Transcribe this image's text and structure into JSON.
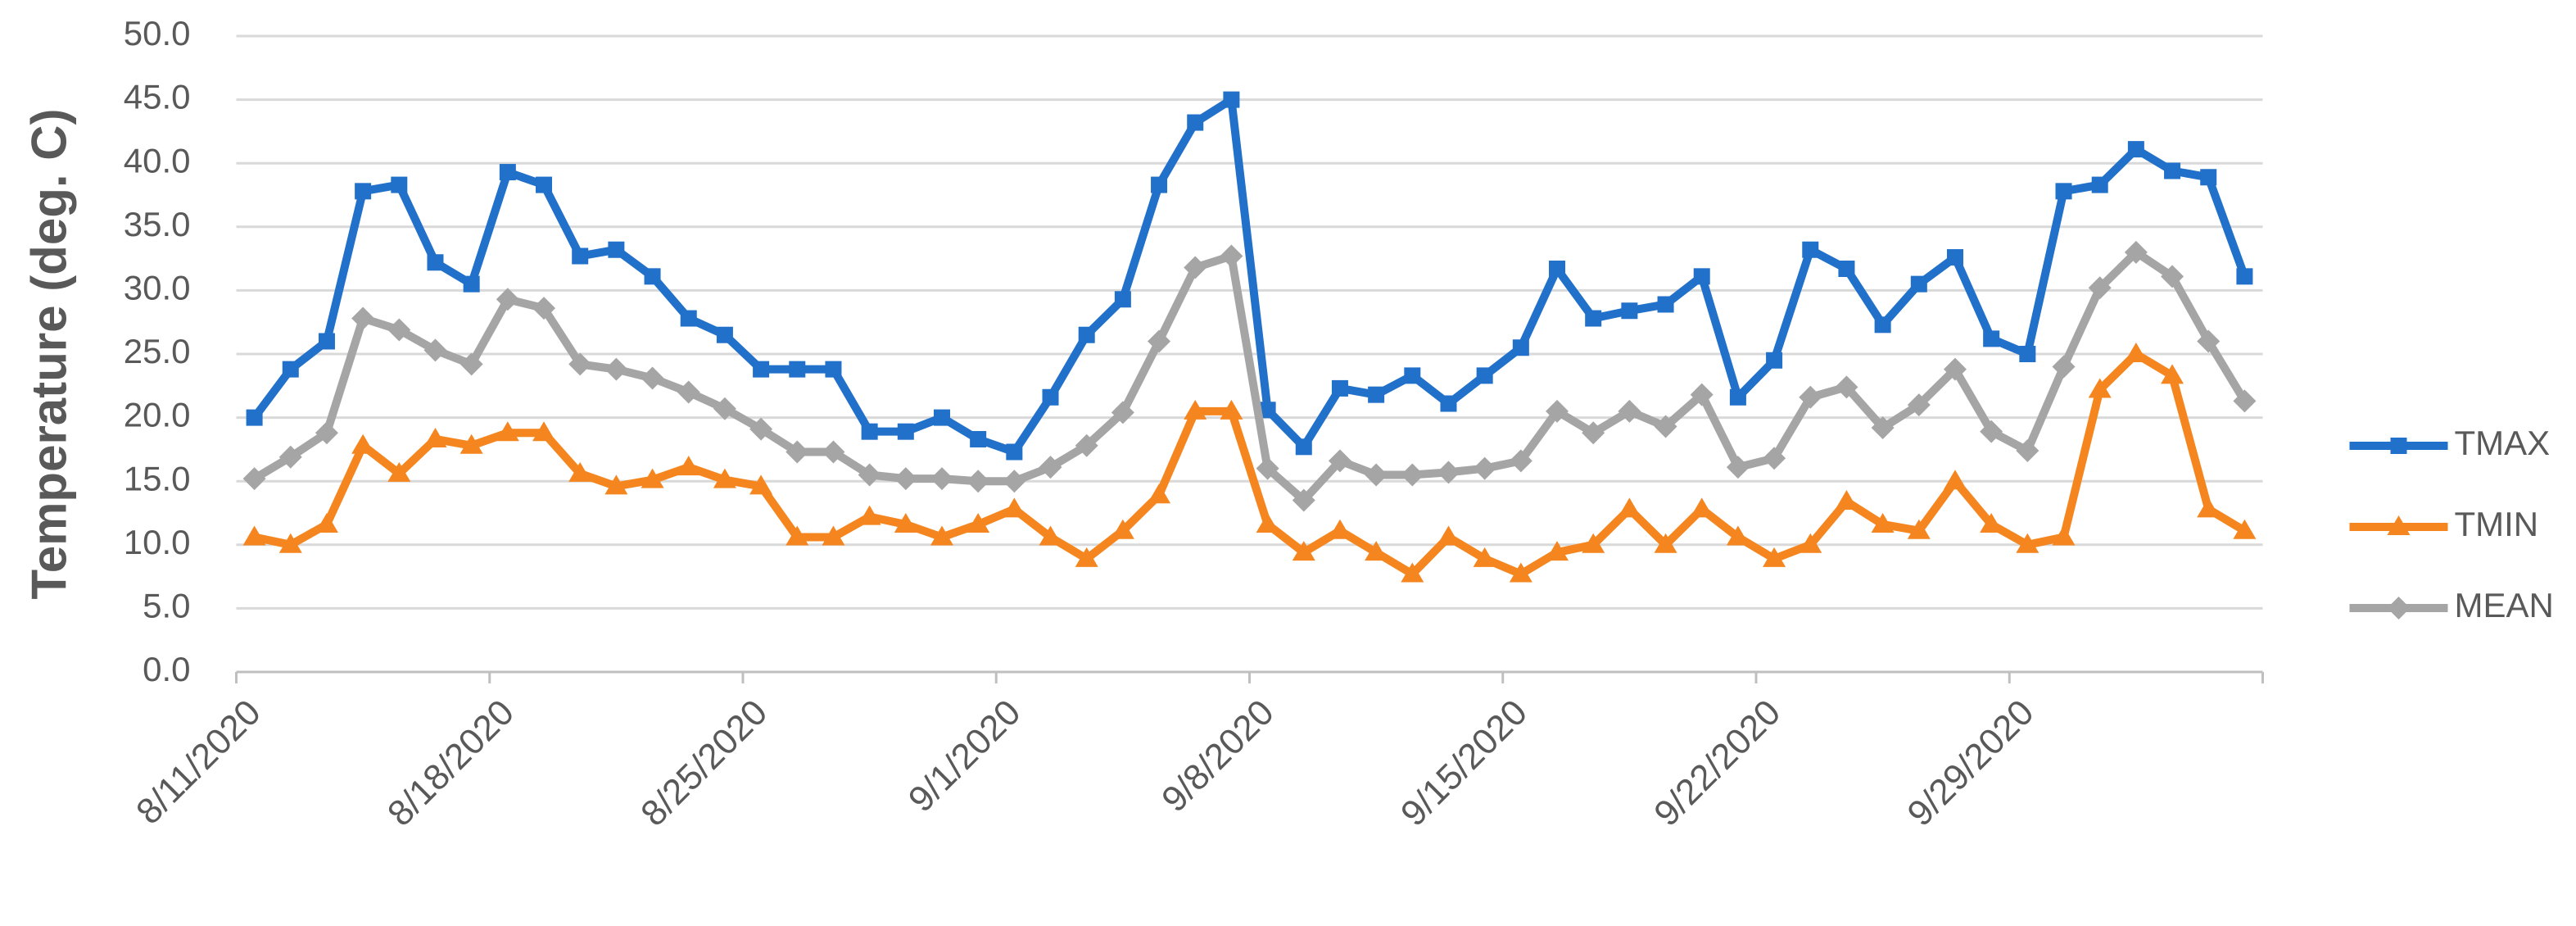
{
  "chart_data": {
    "type": "line",
    "y_label": "Temperature (deg. C)",
    "categories": [
      "8/11/2020",
      null,
      null,
      null,
      null,
      null,
      null,
      "8/18/2020",
      null,
      null,
      null,
      null,
      null,
      null,
      "8/25/2020",
      null,
      null,
      null,
      null,
      null,
      null,
      "9/1/2020",
      null,
      null,
      null,
      null,
      null,
      null,
      "9/8/2020",
      null,
      null,
      null,
      null,
      null,
      null,
      "9/15/2020",
      null,
      null,
      null,
      null,
      null,
      null,
      "9/22/2020",
      null,
      null,
      null,
      null,
      null,
      null,
      "9/29/2020",
      null,
      null,
      null,
      null,
      null,
      null
    ],
    "series": [
      {
        "name": "TMAX",
        "color": "#2170c9",
        "marker": "square",
        "values": [
          20.0,
          23.8,
          26.0,
          37.8,
          38.3,
          32.2,
          30.5,
          39.3,
          38.3,
          32.7,
          33.2,
          31.1,
          27.8,
          26.5,
          23.8,
          23.8,
          23.8,
          18.9,
          18.9,
          20.0,
          18.3,
          17.3,
          21.6,
          26.5,
          29.3,
          38.3,
          43.2,
          45.0,
          20.6,
          17.7,
          22.3,
          21.8,
          23.3,
          21.1,
          23.3,
          25.5,
          31.7,
          27.8,
          28.4,
          28.9,
          31.1,
          21.6,
          24.5,
          33.2,
          31.7,
          27.3,
          30.5,
          32.6,
          26.2,
          25.0,
          37.8,
          38.3,
          41.1,
          39.4,
          38.9,
          31.1
        ]
      },
      {
        "name": "TMIN",
        "color": "#f5861f",
        "marker": "triangle",
        "values": [
          10.6,
          10.0,
          11.6,
          17.8,
          15.6,
          18.3,
          17.8,
          18.8,
          18.8,
          15.6,
          14.6,
          15.1,
          16.1,
          15.1,
          14.6,
          10.6,
          10.6,
          12.2,
          11.6,
          10.6,
          11.6,
          12.8,
          10.6,
          8.9,
          11.1,
          13.9,
          20.5,
          20.5,
          11.6,
          9.4,
          11.1,
          9.4,
          7.7,
          10.6,
          8.9,
          7.7,
          9.4,
          10.0,
          12.8,
          10.0,
          12.8,
          10.6,
          8.9,
          10.0,
          13.4,
          11.6,
          11.1,
          15.0,
          11.6,
          10.0,
          10.6,
          22.2,
          25.0,
          23.3,
          12.8,
          11.1
        ]
      },
      {
        "name": "MEAN",
        "color": "#a5a5a5",
        "marker": "diamond",
        "values": [
          15.2,
          16.9,
          18.8,
          27.8,
          26.9,
          25.3,
          24.2,
          29.3,
          28.6,
          24.2,
          23.8,
          23.1,
          22.0,
          20.7,
          19.1,
          17.3,
          17.3,
          15.5,
          15.2,
          15.2,
          15.0,
          15.0,
          16.1,
          17.8,
          20.4,
          26.0,
          31.8,
          32.7,
          16.0,
          13.5,
          16.6,
          15.5,
          15.5,
          15.7,
          16.0,
          16.6,
          20.5,
          18.8,
          20.5,
          19.3,
          21.8,
          16.1,
          16.8,
          21.6,
          22.4,
          19.2,
          21.0,
          23.8,
          18.9,
          17.4,
          24.0,
          30.2,
          33.0,
          31.1,
          26.0,
          21.3
        ]
      }
    ],
    "ylim": [
      0,
      50
    ],
    "yticks": [
      {
        "value": 0,
        "label": "0.0"
      },
      {
        "value": 5,
        "label": "5.0"
      },
      {
        "value": 10,
        "label": "10.0"
      },
      {
        "value": 15,
        "label": "15.0"
      },
      {
        "value": 20,
        "label": "20.0"
      },
      {
        "value": 25,
        "label": "25.0"
      },
      {
        "value": 30,
        "label": "30.0"
      },
      {
        "value": 35,
        "label": "35.0"
      },
      {
        "value": 40,
        "label": "40.0"
      },
      {
        "value": 45,
        "label": "45.0"
      },
      {
        "value": 50,
        "label": "50.0"
      }
    ],
    "grid": true,
    "legend": "right"
  }
}
